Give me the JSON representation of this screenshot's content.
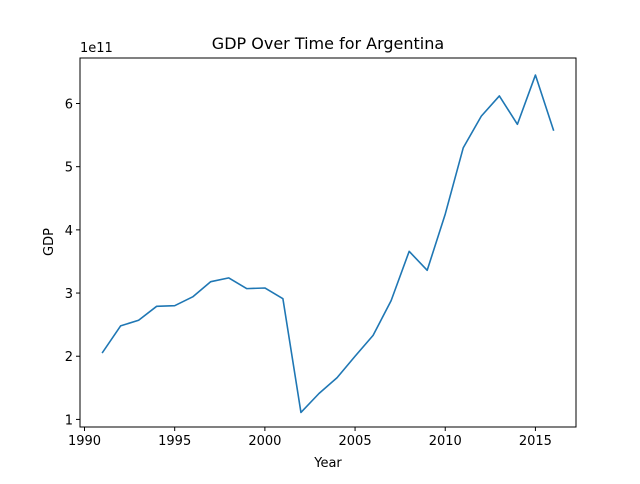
{
  "chart_data": {
    "type": "line",
    "title": "GDP Over Time for Argentina",
    "xlabel": "Year",
    "ylabel": "GDP",
    "y_multiplier_label": "1e11",
    "xlim": [
      1989.75,
      2017.25
    ],
    "ylim": [
      0.88,
      6.72
    ],
    "x_ticks": [
      1990,
      1995,
      2000,
      2005,
      2010,
      2015
    ],
    "x_tick_labels": [
      "1990",
      "1995",
      "2000",
      "2005",
      "2010",
      "2015"
    ],
    "y_ticks": [
      1,
      2,
      3,
      4,
      5,
      6
    ],
    "y_tick_labels": [
      "1",
      "2",
      "3",
      "4",
      "5",
      "6"
    ],
    "grid": false,
    "line_color": "#1f77b4",
    "series": [
      {
        "x": [
          1991,
          1992,
          1993,
          1994,
          1995,
          1996,
          1997,
          1998,
          1999,
          2000,
          2001,
          2002,
          2003,
          2004,
          2005,
          2006,
          2007,
          2008,
          2009,
          2010,
          2011,
          2012,
          2013,
          2014,
          2015,
          2016
        ],
        "values": [
          2.06,
          2.48,
          2.57,
          2.79,
          2.8,
          2.94,
          3.18,
          3.24,
          3.07,
          3.08,
          2.91,
          1.11,
          1.41,
          1.66,
          2.0,
          2.33,
          2.88,
          3.66,
          3.36,
          4.25,
          5.3,
          5.8,
          6.12,
          5.67,
          6.45,
          5.58
        ]
      }
    ]
  }
}
